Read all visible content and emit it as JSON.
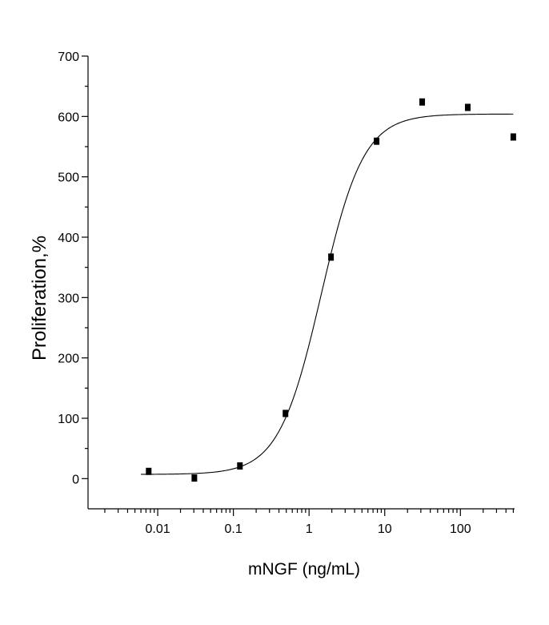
{
  "chart_data": {
    "type": "scatter",
    "xlabel": "mNGF (ng/mL)",
    "ylabel": "Proliferation,%",
    "xscale": "log",
    "xlim": [
      0.0012,
      520
    ],
    "ylim": [
      -50,
      700
    ],
    "x_tick_labels": [
      "0.01",
      "0.1",
      "1",
      "10",
      "100"
    ],
    "y_tick_labels": [
      "0",
      "100",
      "200",
      "300",
      "400",
      "500",
      "600",
      "700"
    ],
    "grid": false,
    "legend": "none",
    "series": [
      {
        "x": [
          0.0076,
          0.0305,
          0.122,
          0.488,
          1.95,
          7.81,
          31.25,
          125,
          500
        ],
        "y": [
          12,
          1,
          21,
          108,
          367,
          559,
          624,
          615,
          566
        ]
      }
    ],
    "fit": {
      "model": "four-parameter logistic",
      "bottom": 7,
      "top": 604,
      "ec50": 1.45,
      "hill": 1.55
    }
  }
}
